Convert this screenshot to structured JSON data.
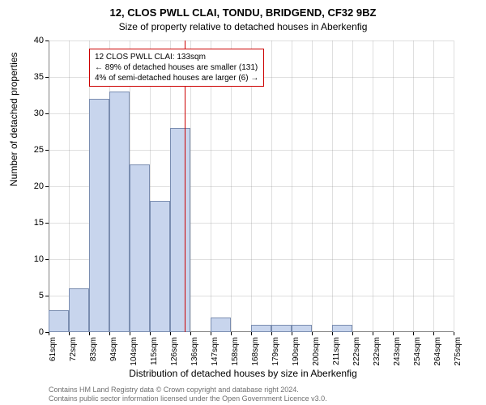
{
  "title_line1": "12, CLOS PWLL CLAI, TONDU, BRIDGEND, CF32 9BZ",
  "title_line2": "Size of property relative to detached houses in Aberkenfig",
  "y_axis_label": "Number of detached properties",
  "x_axis_label": "Distribution of detached houses by size in Aberkenfig",
  "chart": {
    "type": "histogram",
    "bar_fill": "#c8d5ed",
    "bar_stroke": "#7a8db0",
    "marker_color": "#cc0000",
    "grid_color": "#808080",
    "background_color": "#ffffff",
    "ylim": [
      0,
      40
    ],
    "ytick_step": 5,
    "y_ticks": [
      0,
      5,
      10,
      15,
      20,
      25,
      30,
      35,
      40
    ],
    "x_ticks": [
      "61sqm",
      "72sqm",
      "83sqm",
      "94sqm",
      "104sqm",
      "115sqm",
      "126sqm",
      "136sqm",
      "147sqm",
      "158sqm",
      "168sqm",
      "179sqm",
      "190sqm",
      "200sqm",
      "211sqm",
      "222sqm",
      "232sqm",
      "243sqm",
      "254sqm",
      "264sqm",
      "275sqm"
    ],
    "bars": [
      3,
      6,
      32,
      33,
      23,
      18,
      28,
      0,
      2,
      0,
      1,
      1,
      1,
      0,
      1,
      0,
      0,
      0,
      0,
      0
    ],
    "marker_value": 133,
    "x_data_min": 61,
    "x_data_max": 275
  },
  "annotation": {
    "line1": "12 CLOS PWLL CLAI: 133sqm",
    "line2": "← 89% of detached houses are smaller (131)",
    "line3": "4% of semi-detached houses are larger (6) →"
  },
  "footer": {
    "line1": "Contains HM Land Registry data © Crown copyright and database right 2024.",
    "line2": "Contains public sector information licensed under the Open Government Licence v3.0."
  }
}
